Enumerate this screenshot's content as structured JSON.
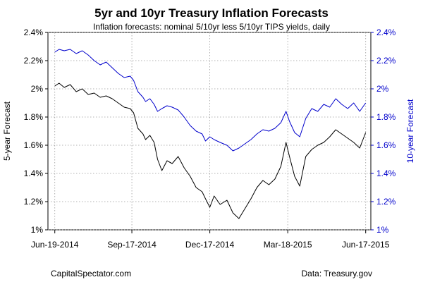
{
  "chart_data": {
    "type": "line",
    "title": "5yr and 10yr Treasury Inflation Forecasts",
    "subtitle": "Inflation forecasts: nominal 5/10yr less 5/10yr TIPS yields, daily",
    "ylabel_left": "5-year Forecast",
    "ylabel_right": "10-year Forecast",
    "ylim": [
      1.0,
      2.4
    ],
    "yticks": [
      1.0,
      1.2,
      1.4,
      1.6,
      1.8,
      2.0,
      2.2,
      2.4
    ],
    "ytick_labels": [
      "1%",
      "1.2%",
      "1.4%",
      "1.6%",
      "1.8%",
      "2%",
      "2.2%",
      "2.4%"
    ],
    "xlim": [
      "2014-06-11",
      "2015-06-23"
    ],
    "xticks": [
      "2014-06-19",
      "2014-09-17",
      "2014-12-17",
      "2015-03-18",
      "2015-06-17"
    ],
    "xtick_labels": [
      "Jun-19-2014",
      "Sep-17-2014",
      "Dec-17-2014",
      "Mar-18-2015",
      "Jun-17-2015"
    ],
    "grid": true,
    "series": [
      {
        "name": "5-year Forecast",
        "color": "#000000",
        "x": [
          "2014-06-19",
          "2014-06-24",
          "2014-06-30",
          "2014-07-07",
          "2014-07-14",
          "2014-07-21",
          "2014-07-28",
          "2014-08-04",
          "2014-08-11",
          "2014-08-18",
          "2014-08-25",
          "2014-09-01",
          "2014-09-08",
          "2014-09-15",
          "2014-09-19",
          "2014-09-24",
          "2014-09-30",
          "2014-10-03",
          "2014-10-08",
          "2014-10-13",
          "2014-10-17",
          "2014-10-22",
          "2014-10-28",
          "2014-11-03",
          "2014-11-10",
          "2014-11-17",
          "2014-11-24",
          "2014-12-01",
          "2014-12-08",
          "2014-12-12",
          "2014-12-17",
          "2014-12-22",
          "2014-12-29",
          "2015-01-06",
          "2015-01-13",
          "2015-01-20",
          "2015-01-27",
          "2015-02-03",
          "2015-02-10",
          "2015-02-17",
          "2015-02-24",
          "2015-03-03",
          "2015-03-10",
          "2015-03-16",
          "2015-03-20",
          "2015-03-26",
          "2015-04-01",
          "2015-04-08",
          "2015-04-15",
          "2015-04-22",
          "2015-04-29",
          "2015-05-06",
          "2015-05-13",
          "2015-05-20",
          "2015-05-27",
          "2015-06-03",
          "2015-06-10",
          "2015-06-17"
        ],
        "y": [
          2.02,
          2.04,
          2.01,
          2.03,
          1.98,
          2.0,
          1.96,
          1.97,
          1.94,
          1.95,
          1.93,
          1.9,
          1.87,
          1.86,
          1.83,
          1.72,
          1.68,
          1.64,
          1.67,
          1.62,
          1.5,
          1.42,
          1.49,
          1.47,
          1.52,
          1.44,
          1.38,
          1.3,
          1.27,
          1.22,
          1.16,
          1.24,
          1.18,
          1.21,
          1.12,
          1.08,
          1.15,
          1.22,
          1.3,
          1.35,
          1.32,
          1.36,
          1.45,
          1.62,
          1.52,
          1.38,
          1.31,
          1.52,
          1.57,
          1.6,
          1.62,
          1.66,
          1.71,
          1.68,
          1.65,
          1.62,
          1.58,
          1.69
        ]
      },
      {
        "name": "10-year Forecast",
        "color": "#0000cc",
        "x": [
          "2014-06-19",
          "2014-06-24",
          "2014-06-30",
          "2014-07-07",
          "2014-07-14",
          "2014-07-21",
          "2014-07-28",
          "2014-08-04",
          "2014-08-11",
          "2014-08-18",
          "2014-08-25",
          "2014-09-01",
          "2014-09-08",
          "2014-09-15",
          "2014-09-19",
          "2014-09-24",
          "2014-09-30",
          "2014-10-03",
          "2014-10-08",
          "2014-10-13",
          "2014-10-17",
          "2014-10-22",
          "2014-10-28",
          "2014-11-03",
          "2014-11-10",
          "2014-11-17",
          "2014-11-24",
          "2014-12-01",
          "2014-12-08",
          "2014-12-12",
          "2014-12-17",
          "2014-12-22",
          "2014-12-29",
          "2015-01-06",
          "2015-01-13",
          "2015-01-20",
          "2015-01-27",
          "2015-02-03",
          "2015-02-10",
          "2015-02-17",
          "2015-02-24",
          "2015-03-03",
          "2015-03-10",
          "2015-03-16",
          "2015-03-20",
          "2015-03-26",
          "2015-04-01",
          "2015-04-08",
          "2015-04-15",
          "2015-04-22",
          "2015-04-29",
          "2015-05-06",
          "2015-05-13",
          "2015-05-20",
          "2015-05-27",
          "2015-06-03",
          "2015-06-10",
          "2015-06-17"
        ],
        "y": [
          2.26,
          2.28,
          2.27,
          2.28,
          2.25,
          2.27,
          2.24,
          2.2,
          2.17,
          2.19,
          2.15,
          2.11,
          2.08,
          2.09,
          2.06,
          1.98,
          1.94,
          1.91,
          1.93,
          1.89,
          1.84,
          1.86,
          1.88,
          1.87,
          1.85,
          1.8,
          1.74,
          1.7,
          1.68,
          1.63,
          1.66,
          1.64,
          1.62,
          1.6,
          1.56,
          1.58,
          1.61,
          1.64,
          1.68,
          1.71,
          1.7,
          1.72,
          1.76,
          1.84,
          1.77,
          1.69,
          1.66,
          1.79,
          1.86,
          1.84,
          1.89,
          1.87,
          1.93,
          1.89,
          1.86,
          1.9,
          1.84,
          1.9
        ]
      }
    ]
  },
  "footer": {
    "left": "CapitalSpectator.com",
    "right": "Data: Treasury.gov"
  }
}
